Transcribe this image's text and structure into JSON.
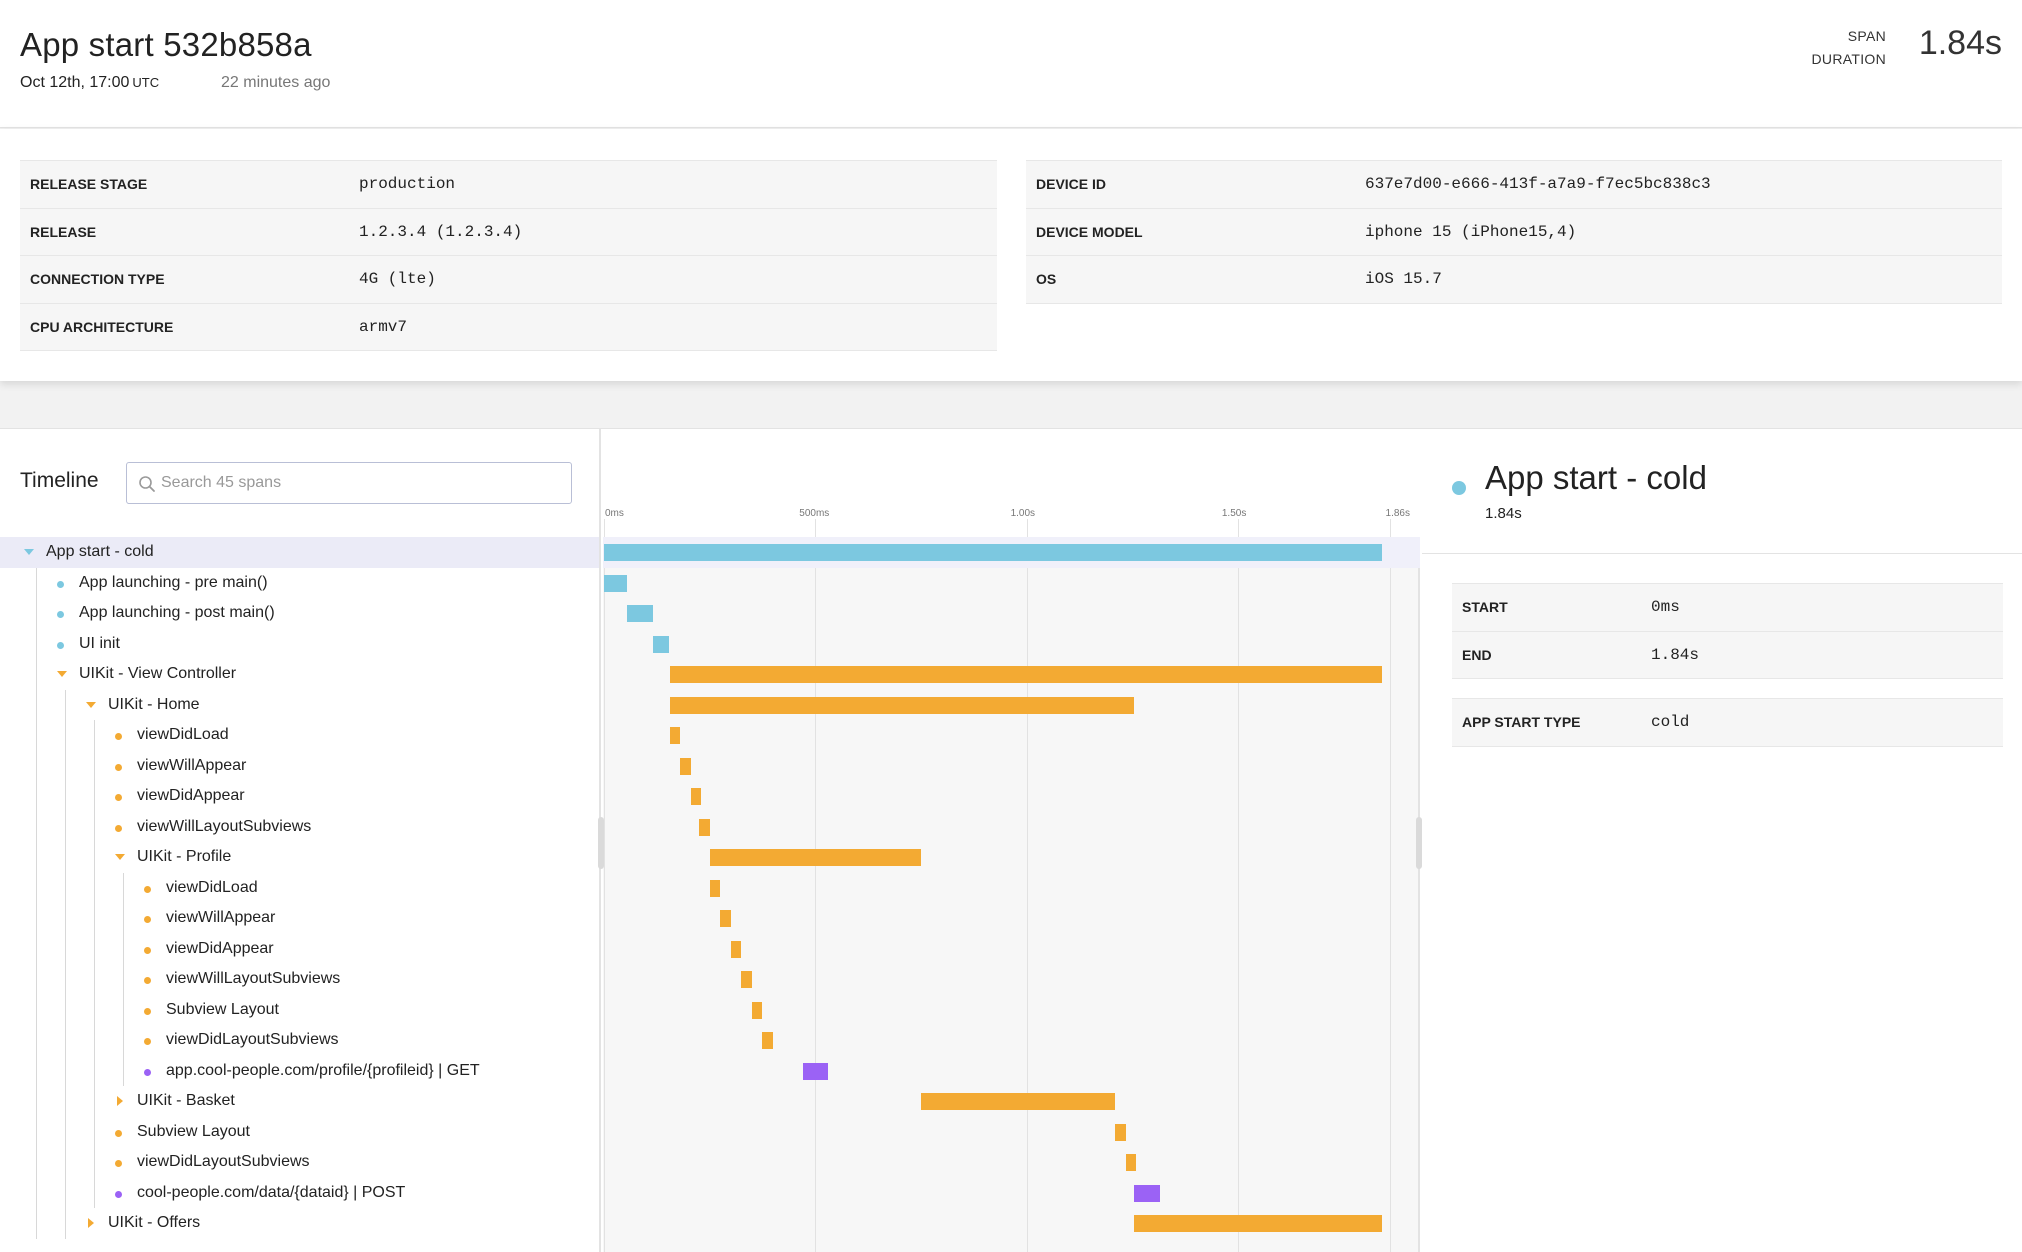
{
  "header": {
    "title": "App start 532b858a",
    "date": "Oct 12th, 17:00",
    "timezone": "UTC",
    "relative_time": "22 minutes ago",
    "duration_label_1": "SPAN",
    "duration_label_2": "DURATION",
    "duration_value": "1.84s"
  },
  "metadata": {
    "left": [
      {
        "key": "RELEASE STAGE",
        "value": "production"
      },
      {
        "key": "RELEASE",
        "value": "1.2.3.4 (1.2.3.4)"
      },
      {
        "key": "CONNECTION TYPE",
        "value": "4G (lte)"
      },
      {
        "key": "CPU ARCHITECTURE",
        "value": "armv7"
      }
    ],
    "right": [
      {
        "key": "DEVICE ID",
        "value": "637e7d00-e666-413f-a7a9-f7ec5bc838c3"
      },
      {
        "key": "DEVICE MODEL",
        "value": "iphone 15 (iPhone15,4)"
      },
      {
        "key": "OS",
        "value": "iOS 15.7"
      }
    ]
  },
  "timeline": {
    "title": "Timeline",
    "search_placeholder": "Search 45 spans",
    "axis_ticks": [
      "0ms",
      "500ms",
      "1.00s",
      "1.50s",
      "1.86s"
    ],
    "axis_max_ms": 1860,
    "spans": [
      {
        "name": "App start - cold",
        "depth": 0,
        "kind": "group",
        "expanded": true,
        "color": "#7cc8e0",
        "start_ms": 0,
        "end_ms": 1840,
        "selected": true
      },
      {
        "name": "App launching - pre main()",
        "depth": 1,
        "kind": "leaf",
        "color": "#7cc8e0",
        "start_ms": 0,
        "end_ms": 55
      },
      {
        "name": "App launching - post main()",
        "depth": 1,
        "kind": "leaf",
        "color": "#7cc8e0",
        "start_ms": 55,
        "end_ms": 115
      },
      {
        "name": "UI init",
        "depth": 1,
        "kind": "leaf",
        "color": "#7cc8e0",
        "start_ms": 115,
        "end_ms": 155
      },
      {
        "name": "UIKit - View Controller",
        "depth": 1,
        "kind": "group",
        "expanded": true,
        "color": "#f3aa33",
        "start_ms": 155,
        "end_ms": 1840
      },
      {
        "name": "UIKit - Home",
        "depth": 2,
        "kind": "group",
        "expanded": true,
        "color": "#f3aa33",
        "start_ms": 155,
        "end_ms": 1255
      },
      {
        "name": "viewDidLoad",
        "depth": 3,
        "kind": "leaf",
        "color": "#f3aa33",
        "start_ms": 155,
        "end_ms": 180
      },
      {
        "name": "viewWillAppear",
        "depth": 3,
        "kind": "leaf",
        "color": "#f3aa33",
        "start_ms": 180,
        "end_ms": 205
      },
      {
        "name": "viewDidAppear",
        "depth": 3,
        "kind": "leaf",
        "color": "#f3aa33",
        "start_ms": 205,
        "end_ms": 225
      },
      {
        "name": "viewWillLayoutSubviews",
        "depth": 3,
        "kind": "leaf",
        "color": "#f3aa33",
        "start_ms": 225,
        "end_ms": 250
      },
      {
        "name": "UIKit - Profile",
        "depth": 3,
        "kind": "group",
        "expanded": true,
        "color": "#f3aa33",
        "start_ms": 250,
        "end_ms": 750
      },
      {
        "name": "viewDidLoad",
        "depth": 4,
        "kind": "leaf",
        "color": "#f3aa33",
        "start_ms": 250,
        "end_ms": 275
      },
      {
        "name": "viewWillAppear",
        "depth": 4,
        "kind": "leaf",
        "color": "#f3aa33",
        "start_ms": 275,
        "end_ms": 300
      },
      {
        "name": "viewDidAppear",
        "depth": 4,
        "kind": "leaf",
        "color": "#f3aa33",
        "start_ms": 300,
        "end_ms": 325
      },
      {
        "name": "viewWillLayoutSubviews",
        "depth": 4,
        "kind": "leaf",
        "color": "#f3aa33",
        "start_ms": 325,
        "end_ms": 350
      },
      {
        "name": "Subview Layout",
        "depth": 4,
        "kind": "leaf",
        "color": "#f3aa33",
        "start_ms": 350,
        "end_ms": 375
      },
      {
        "name": "viewDidLayoutSubviews",
        "depth": 4,
        "kind": "leaf",
        "color": "#f3aa33",
        "start_ms": 375,
        "end_ms": 400
      },
      {
        "name": "app.cool-people.com/profile/{profileid} | GET",
        "depth": 4,
        "kind": "leaf",
        "color": "#9b62f5",
        "start_ms": 470,
        "end_ms": 530
      },
      {
        "name": "UIKit - Basket",
        "depth": 3,
        "kind": "group",
        "expanded": false,
        "color": "#f3aa33",
        "start_ms": 750,
        "end_ms": 1210
      },
      {
        "name": "Subview Layout",
        "depth": 3,
        "kind": "leaf",
        "color": "#f3aa33",
        "start_ms": 1210,
        "end_ms": 1235
      },
      {
        "name": "viewDidLayoutSubviews",
        "depth": 3,
        "kind": "leaf",
        "color": "#f3aa33",
        "start_ms": 1235,
        "end_ms": 1255
      },
      {
        "name": "cool-people.com/data/{dataid} | POST",
        "depth": 3,
        "kind": "leaf",
        "color": "#9b62f5",
        "start_ms": 1255,
        "end_ms": 1315
      },
      {
        "name": "UIKit - Offers",
        "depth": 2,
        "kind": "group",
        "expanded": false,
        "color": "#f3aa33",
        "start_ms": 1255,
        "end_ms": 1840
      }
    ]
  },
  "detail": {
    "title": "App start - cold",
    "subtitle": "1.84s",
    "color": "#7cc8e0",
    "rows_group1": [
      {
        "key": "START",
        "value": "0ms"
      },
      {
        "key": "END",
        "value": "1.84s"
      }
    ],
    "rows_group2": [
      {
        "key": "APP START TYPE",
        "value": "cold"
      }
    ]
  }
}
